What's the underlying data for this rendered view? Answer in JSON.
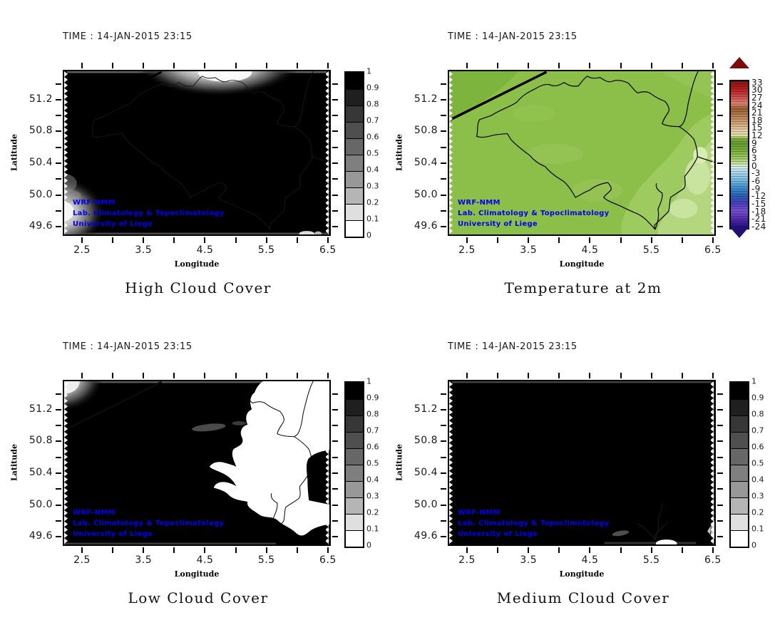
{
  "page": {
    "background": "#ffffff"
  },
  "watermark": {
    "line1": "WRF-NMM",
    "line2": "Lab. Climatology & Topoclimatology",
    "line3": "University of Liege",
    "color": "#0000ee"
  },
  "axes": {
    "xlabel": "Longitude",
    "ylabel": "Latitude",
    "xlim": [
      2.187,
      6.547
    ],
    "ylim": [
      49.485,
      51.575
    ],
    "x_ticks": [
      2.5,
      3.0,
      3.5,
      4.0,
      4.5,
      5.0,
      5.5,
      6.0,
      6.5
    ],
    "x_major": [
      [
        2.5,
        "2.5"
      ],
      [
        3.5,
        "3.5"
      ],
      [
        4.5,
        "4.5"
      ],
      [
        5.5,
        "5.5"
      ],
      [
        6.5,
        "6.5"
      ]
    ],
    "y_ticks": [
      49.6,
      49.8,
      50.0,
      50.2,
      50.4,
      50.6,
      50.8,
      51.0,
      51.2,
      51.4
    ],
    "y_major": [
      [
        49.6,
        "49.6"
      ],
      [
        50.0,
        "50.0"
      ],
      [
        50.4,
        "50.4"
      ],
      [
        50.8,
        "50.8"
      ],
      [
        51.2,
        "51.2"
      ]
    ]
  },
  "panels": [
    {
      "title": "High Cloud Cover",
      "time": "TIME : 14-JAN-2015 23:15",
      "colorbar": "cloud"
    },
    {
      "title": "Temperature at 2m",
      "time": "TIME : 14-JAN-2015 23:15",
      "colorbar": "temp"
    },
    {
      "title": "Low Cloud Cover",
      "time": "TIME : 14-JAN-2015 23:15",
      "colorbar": "cloud"
    },
    {
      "title": "Medium Cloud Cover",
      "time": "TIME : 14-JAN-2015 23:15",
      "colorbar": "cloud"
    }
  ],
  "colorbars": {
    "cloud": {
      "labels": [
        "1",
        "0.9",
        "0.8",
        "0.7",
        "0.6",
        "0.5",
        "0.4",
        "0.3",
        "0.2",
        "0.1",
        "0"
      ],
      "colors": [
        "#000000",
        "#1f1f1f",
        "#373737",
        "#4f4f4f",
        "#676767",
        "#7f7f7f",
        "#989898",
        "#b5b5b5",
        "#dfdfdf",
        "#ffffff"
      ]
    },
    "temp": {
      "labels": [
        [
          33,
          "33"
        ],
        [
          30,
          "30"
        ],
        [
          27,
          "27"
        ],
        [
          24,
          "24"
        ],
        [
          21,
          "21"
        ],
        [
          18,
          "18"
        ],
        [
          15,
          "15"
        ],
        [
          12,
          "12"
        ],
        [
          9,
          "9"
        ],
        [
          6,
          "6"
        ],
        [
          3,
          "3"
        ],
        [
          0,
          "0"
        ],
        [
          -3,
          "-3"
        ],
        [
          -6,
          "-6"
        ],
        [
          -9,
          "-9"
        ],
        [
          -12,
          "-12"
        ],
        [
          -15,
          "-15"
        ],
        [
          -18,
          "-18"
        ],
        [
          -21,
          "-21"
        ],
        [
          -24,
          "-24"
        ]
      ],
      "stops": [
        [
          34,
          "#8f1212"
        ],
        [
          31,
          "#b52020"
        ],
        [
          28,
          "#d04848"
        ],
        [
          25,
          "#e08878"
        ],
        [
          23,
          "#9e6030"
        ],
        [
          20,
          "#b98354"
        ],
        [
          17,
          "#d4a87c"
        ],
        [
          14,
          "#ecd3ae"
        ],
        [
          12,
          "#dfe2a8"
        ],
        [
          11,
          "#8aae3e"
        ],
        [
          9,
          "#64a030"
        ],
        [
          6,
          "#7db33c"
        ],
        [
          3,
          "#a3cd68"
        ],
        [
          1,
          "#c8e49c"
        ],
        [
          0,
          "#d8ecd8"
        ],
        [
          -1,
          "#cfe9f2"
        ],
        [
          -3,
          "#a8d8ee"
        ],
        [
          -6,
          "#74bce4"
        ],
        [
          -9,
          "#3f8fd0"
        ],
        [
          -12,
          "#2b62b8"
        ],
        [
          -15,
          "#4a3fc0"
        ],
        [
          -18,
          "#7a52d4"
        ],
        [
          -21,
          "#5930b8"
        ],
        [
          -24,
          "#2f1690"
        ],
        [
          -25,
          "#23107e"
        ]
      ],
      "arrow_top": "#7a0c0c",
      "arrow_bottom": "#231077",
      "vmax": 34,
      "vmin": -25
    }
  },
  "chart_data": [
    {
      "type": "heatmap",
      "title": "High Cloud Cover",
      "time": "14-JAN-2015 23:15",
      "xlabel": "Longitude",
      "ylabel": "Latitude",
      "xlim": [
        2.19,
        6.55
      ],
      "ylim": [
        49.49,
        51.57
      ],
      "xticks": [
        2.5,
        3.5,
        4.5,
        5.5,
        6.5
      ],
      "yticks": [
        49.6,
        50.0,
        50.4,
        50.8,
        51.2
      ],
      "colorbar": {
        "range": [
          0,
          1
        ],
        "ticks": [
          0,
          0.1,
          0.2,
          0.3,
          0.4,
          0.5,
          0.6,
          0.7,
          0.8,
          0.9,
          1
        ],
        "palette": "white-to-black grayscale"
      },
      "field_summary": "High cloud fraction ~1.0 (black) over almost the entire Belgium domain; bright clear gradient patch (0-0.5) hanging from the northern edge between ~3.6-5.2E; small clear patch near 2.2-2.6E 49.8-50.1N; thin lighter strips along top and bottom edges; country border faintly visible"
    },
    {
      "type": "heatmap",
      "title": "Temperature at 2m",
      "time": "14-JAN-2015 23:15",
      "xlabel": "Longitude",
      "ylabel": "Latitude",
      "xlim": [
        2.19,
        6.55
      ],
      "ylim": [
        49.49,
        51.57
      ],
      "xticks": [
        2.5,
        3.5,
        4.5,
        5.5,
        6.5
      ],
      "yticks": [
        49.6,
        50.0,
        50.4,
        50.8,
        51.2
      ],
      "colorbar": {
        "range": [
          -24,
          33
        ],
        "ticks": [
          -24,
          -21,
          -18,
          -15,
          -12,
          -9,
          -6,
          -3,
          0,
          3,
          6,
          9,
          12,
          15,
          18,
          21,
          24,
          27,
          30,
          33
        ],
        "palette": "diverging blue-violet / blue / green / tan / red with arrow end caps"
      },
      "field_summary": "2 m temperature mostly 3-7 C (mid green) across Belgium; slightly cooler 0-3 C (pale green) patches over the Ardennes in the south-east; slightly darker green in the north-west corner; Belgian national border and thick coastline drawn in black"
    },
    {
      "type": "heatmap",
      "title": "Low Cloud Cover",
      "time": "14-JAN-2015 23:15",
      "xlabel": "Longitude",
      "ylabel": "Latitude",
      "xlim": [
        2.19,
        6.55
      ],
      "ylim": [
        49.49,
        51.57
      ],
      "xticks": [
        2.5,
        3.5,
        4.5,
        5.5,
        6.5
      ],
      "yticks": [
        49.6,
        50.0,
        50.4,
        50.8,
        51.2
      ],
      "colorbar": {
        "range": [
          0,
          1
        ],
        "ticks": [
          0,
          0.1,
          0.2,
          0.3,
          0.4,
          0.5,
          0.6,
          0.7,
          0.8,
          0.9,
          1
        ],
        "palette": "white-to-black grayscale"
      },
      "field_summary": "Low cloud ~1.0 (black) over western and central Belgium; large irregular clear region (0, white) over the east ~4.7-6.5E from ~49.9-51.5N with black blob at the eastern edge and black south-east corner; small grey clear patch in the north-west corner; borders visible inside the clear area"
    },
    {
      "type": "heatmap",
      "title": "Medium Cloud Cover",
      "time": "14-JAN-2015 23:15",
      "xlabel": "Longitude",
      "ylabel": "Latitude",
      "xlim": [
        2.19,
        6.55
      ],
      "ylim": [
        49.49,
        51.57
      ],
      "xticks": [
        2.5,
        3.5,
        4.5,
        5.5,
        6.5
      ],
      "yticks": [
        49.6,
        50.0,
        50.4,
        50.8,
        51.2
      ],
      "colorbar": {
        "range": [
          0,
          1
        ],
        "ticks": [
          0,
          0.1,
          0.2,
          0.3,
          0.4,
          0.5,
          0.6,
          0.7,
          0.8,
          0.9,
          1
        ],
        "palette": "white-to-black grayscale"
      },
      "field_summary": "Medium cloud ~1.0 (black) over the whole domain except a tiny clear white spot near 5.6E 49.5N on the southern edge and a faint grey smear just west of it"
    }
  ]
}
